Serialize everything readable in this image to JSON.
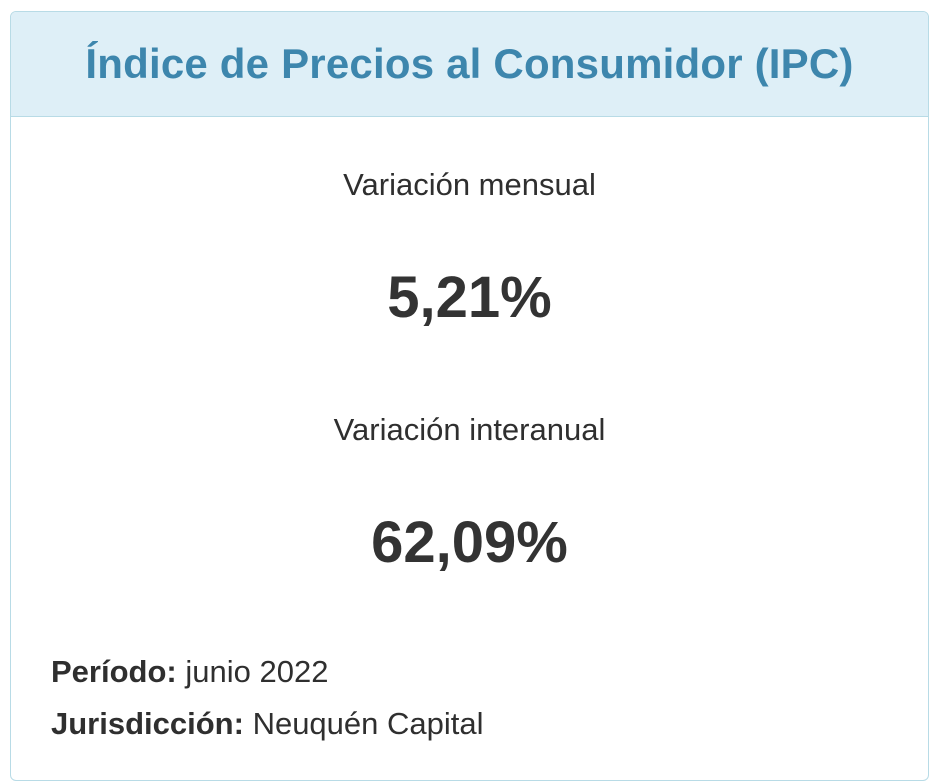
{
  "card": {
    "title": "Índice de Precios al Consumidor (IPC)",
    "accent_color": "#3d86ad",
    "header_background": "#deeff7",
    "border_color": "#b8dbe6"
  },
  "monthly": {
    "label": "Variación mensual",
    "value": "5,21%"
  },
  "annual": {
    "label": "Variación interanual",
    "value": "62,09%"
  },
  "meta": {
    "period_key": "Período:",
    "period_value": "junio 2022",
    "jurisdiction_key": "Jurisdicción:",
    "jurisdiction_value": "Neuquén Capital"
  }
}
